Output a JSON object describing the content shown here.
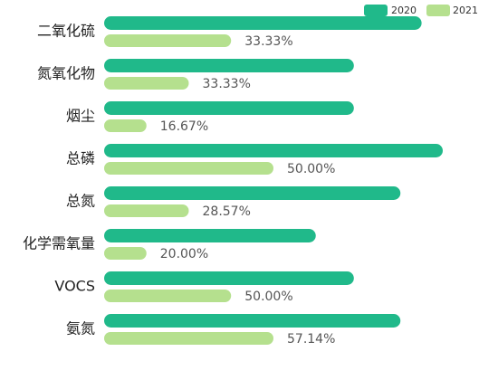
{
  "chart_data": {
    "type": "bar",
    "orientation": "horizontal",
    "categories": [
      "二氧化硫",
      "氮氧化物",
      "烟尘",
      "总磷",
      "总氮",
      "化学需氧量",
      "VOCS",
      "氨氮"
    ],
    "series": [
      {
        "name": "2020",
        "color": "#20b98a",
        "values": [
          7.5,
          5.9,
          5.9,
          8.0,
          7.0,
          5.0,
          5.9,
          7.0
        ]
      },
      {
        "name": "2021",
        "color": "#b5e08e",
        "values": [
          3.0,
          2.0,
          1.0,
          4.0,
          2.0,
          1.0,
          3.0,
          4.0
        ],
        "labels": [
          "33.33%",
          "33.33%",
          "16.67%",
          "50.00%",
          "28.57%",
          "20.00%",
          "50.00%",
          "57.14%"
        ]
      }
    ],
    "xlim": [
      0,
      8.0
    ],
    "legend": {
      "position": "top-right"
    },
    "grid": false,
    "xlabel": "",
    "ylabel": "",
    "title": ""
  }
}
